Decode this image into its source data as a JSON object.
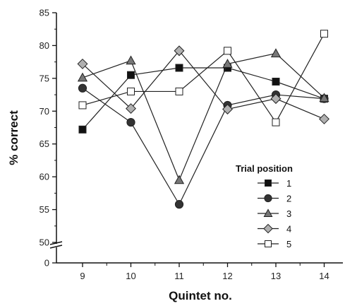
{
  "chart_data": {
    "type": "line",
    "xlabel": "Quintet no.",
    "ylabel": "% correct",
    "x": [
      9,
      10,
      11,
      12,
      13,
      14
    ],
    "x_tick_labels": [
      "9",
      "10",
      "11",
      "12",
      "13",
      "14"
    ],
    "y_tick_labels": [
      "85",
      "80",
      "75",
      "70",
      "65",
      "60",
      "55",
      "50",
      "0"
    ],
    "ylim": [
      50,
      85
    ],
    "y_axis_break": true,
    "legend": {
      "title": "Trial position",
      "placement": "lower-right"
    },
    "series": [
      {
        "name": "1",
        "marker": "square",
        "fill": "#111111",
        "values": [
          67.2,
          75.5,
          76.6,
          76.6,
          74.5,
          71.9
        ]
      },
      {
        "name": "2",
        "marker": "circle",
        "fill": "#333333",
        "values": [
          73.5,
          68.3,
          55.8,
          70.9,
          72.5,
          71.9
        ]
      },
      {
        "name": "3",
        "marker": "triangle",
        "fill": "#777777",
        "values": [
          75.1,
          77.7,
          59.5,
          77.2,
          78.8,
          72.0
        ]
      },
      {
        "name": "4",
        "marker": "diamond",
        "fill": "#b0b0b0",
        "values": [
          77.2,
          70.4,
          79.2,
          70.3,
          71.9,
          68.8
        ]
      },
      {
        "name": "5",
        "marker": "open-square",
        "fill": "#ffffff",
        "values": [
          70.9,
          73.0,
          73.0,
          79.2,
          68.3,
          81.8
        ]
      }
    ]
  }
}
